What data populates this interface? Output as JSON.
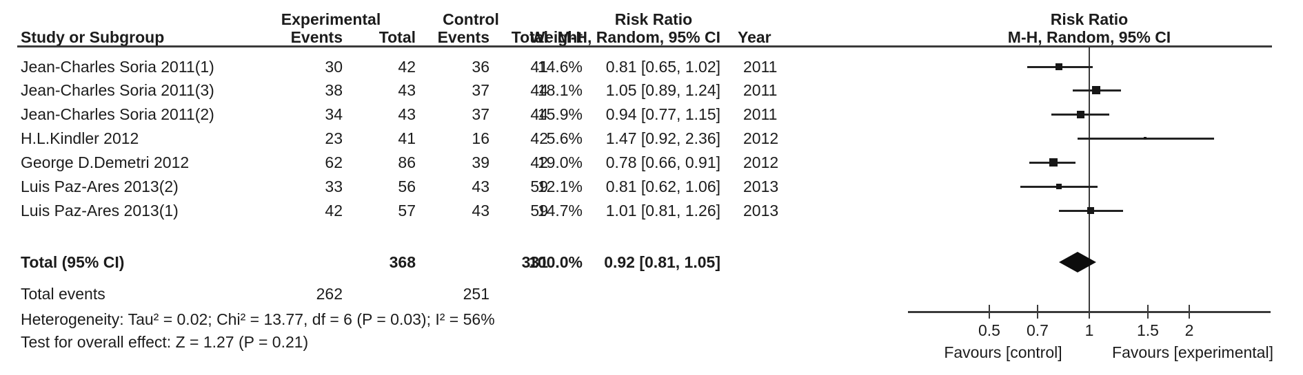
{
  "header": {
    "group_experimental": "Experimental",
    "group_control": "Control",
    "group_risk_ratio_left": "Risk Ratio",
    "group_risk_ratio_right": "Risk Ratio",
    "study": "Study or Subgroup",
    "events_exp": "Events",
    "total_exp": "Total",
    "events_ctl": "Events",
    "total_ctl": "Total",
    "weight": "Weight",
    "mh_ci": "M-H, Random, 95% CI",
    "year": "Year",
    "mh_ci_right": "M-H, Random, 95% CI"
  },
  "chart_data": {
    "type": "forest",
    "effect_measure": "Risk Ratio",
    "method": "M-H, Random, 95% CI",
    "x_scale": "log10",
    "axis_ticks": [
      "0.5",
      "0.7",
      "1",
      "1.5",
      "2"
    ],
    "axis_tick_values": [
      0.5,
      0.7,
      1,
      1.5,
      2
    ],
    "favours_left": "Favours [control]",
    "favours_right": "Favours [experimental]",
    "marker_color": "#171717",
    "studies": [
      {
        "name": "Jean-Charles Soria 2011(1)",
        "events_exp": "30",
        "total_exp": "42",
        "events_ctl": "36",
        "total_ctl": "41",
        "weight_label": "14.6%",
        "weight_pct": 14.6,
        "rr": 0.81,
        "ci_low": 0.65,
        "ci_high": 1.02,
        "ci_label": "0.81 [0.65, 1.02]",
        "year": "2011"
      },
      {
        "name": "Jean-Charles Soria 2011(3)",
        "events_exp": "38",
        "total_exp": "43",
        "events_ctl": "37",
        "total_ctl": "44",
        "weight_label": "18.1%",
        "weight_pct": 18.1,
        "rr": 1.05,
        "ci_low": 0.89,
        "ci_high": 1.24,
        "ci_label": "1.05 [0.89, 1.24]",
        "year": "2011"
      },
      {
        "name": "Jean-Charles Soria 2011(2)",
        "events_exp": "34",
        "total_exp": "43",
        "events_ctl": "37",
        "total_ctl": "44",
        "weight_label": "15.9%",
        "weight_pct": 15.9,
        "rr": 0.94,
        "ci_low": 0.77,
        "ci_high": 1.15,
        "ci_label": "0.94 [0.77, 1.15]",
        "year": "2011"
      },
      {
        "name": "H.L.Kindler 2012",
        "events_exp": "23",
        "total_exp": "41",
        "events_ctl": "16",
        "total_ctl": "42",
        "weight_label": "5.6%",
        "weight_pct": 5.6,
        "rr": 1.47,
        "ci_low": 0.92,
        "ci_high": 2.36,
        "ci_label": "1.47 [0.92, 2.36]",
        "year": "2012"
      },
      {
        "name": "George D.Demetri 2012",
        "events_exp": "62",
        "total_exp": "86",
        "events_ctl": "39",
        "total_ctl": "42",
        "weight_label": "19.0%",
        "weight_pct": 19.0,
        "rr": 0.78,
        "ci_low": 0.66,
        "ci_high": 0.91,
        "ci_label": "0.78 [0.66, 0.91]",
        "year": "2012"
      },
      {
        "name": "Luis Paz-Ares 2013(2)",
        "events_exp": "33",
        "total_exp": "56",
        "events_ctl": "43",
        "total_ctl": "59",
        "weight_label": "12.1%",
        "weight_pct": 12.1,
        "rr": 0.81,
        "ci_low": 0.62,
        "ci_high": 1.06,
        "ci_label": "0.81 [0.62, 1.06]",
        "year": "2013"
      },
      {
        "name": "Luis Paz-Ares 2013(1)",
        "events_exp": "42",
        "total_exp": "57",
        "events_ctl": "43",
        "total_ctl": "59",
        "weight_label": "14.7%",
        "weight_pct": 14.7,
        "rr": 1.01,
        "ci_low": 0.81,
        "ci_high": 1.26,
        "ci_label": "1.01 [0.81, 1.26]",
        "year": "2013"
      }
    ],
    "total": {
      "label": "Total (95% CI)",
      "total_exp": "368",
      "total_ctl": "331",
      "weight_label": "100.0%",
      "rr": 0.92,
      "ci_low": 0.81,
      "ci_high": 1.05,
      "ci_label": "0.92 [0.81, 1.05]"
    },
    "total_events": {
      "label": "Total events",
      "exp": "262",
      "ctl": "251"
    },
    "heterogeneity": "Heterogeneity: Tau² = 0.02; Chi² = 13.77, df = 6 (P = 0.03); I² = 56%",
    "overall_effect": "Test for overall effect: Z = 1.27 (P = 0.21)"
  }
}
